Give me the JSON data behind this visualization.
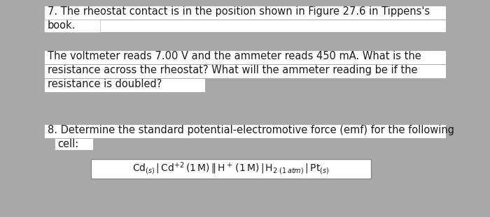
{
  "bg_color": "#a8a8a8",
  "box_color": "#ffffff",
  "text_color": "#1a1a1a",
  "border_color": "#999999",
  "line1_q7": "7. The rheostat contact is in the position shown in Figure 27.6 in Tippens's",
  "line2_q7": "book.",
  "line1_q7b": "The voltmeter reads 7.00 V and the ammeter reads 450 mA. What is the",
  "line2_q7b": "resistance across the rheostat? What will the ammeter reading be if the",
  "line3_q7b": "resistance is doubled?",
  "line1_q8": "8. Determine the standard potential-electromotive force (emf) for the following",
  "line2_q8": "cell:",
  "font_size_main": 10.5,
  "font_size_formula": 10.0
}
